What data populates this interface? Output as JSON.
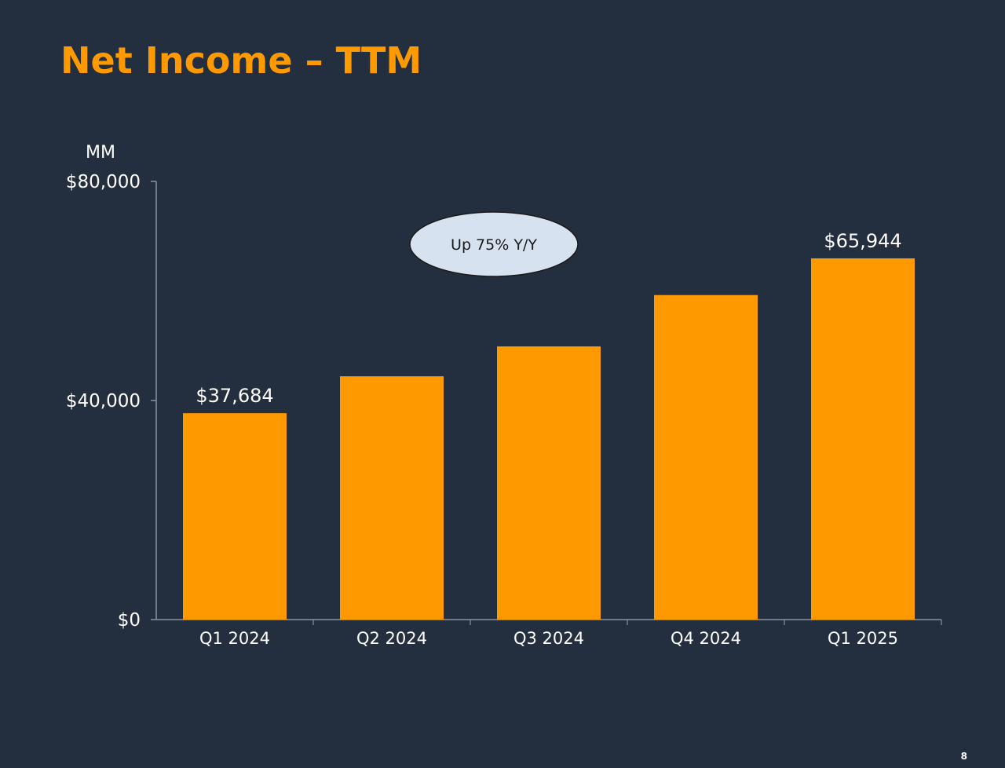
{
  "slide": {
    "title": "Net Income – TTM",
    "page_number": "8"
  },
  "colors": {
    "background": "#232f3e",
    "bar": "#ff9900",
    "title": "#ff9900",
    "text": "#ffffff",
    "axis": "#8a939e",
    "callout_fill": "#d6e2f0",
    "callout_stroke": "#1a1a1a",
    "callout_text": "#1a1a1a"
  },
  "chart_data": {
    "type": "bar",
    "title": "Net Income – TTM",
    "unit_label": "MM",
    "categories": [
      "Q1 2024",
      "Q2 2024",
      "Q3 2024",
      "Q4 2024",
      "Q1 2025"
    ],
    "values": [
      37684,
      44419,
      49868,
      59248,
      65944
    ],
    "data_labels": [
      "$37,684",
      "",
      "",
      "",
      "$65,944"
    ],
    "ylim": [
      0,
      80000
    ],
    "y_ticks": [
      0,
      40000,
      80000
    ],
    "y_tick_labels": [
      "$0",
      "$40,000",
      "$80,000"
    ],
    "grid": false,
    "annotation": "Up 75% Y/Y"
  }
}
